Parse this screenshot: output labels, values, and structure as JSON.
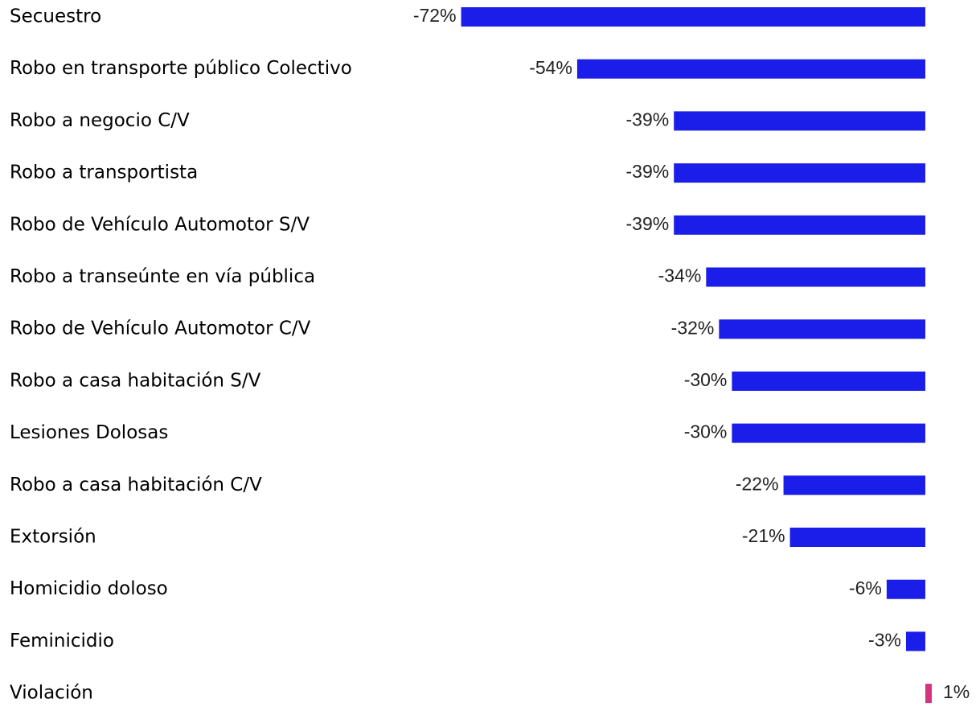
{
  "chart_data": {
    "type": "bar",
    "orientation": "horizontal",
    "categories": [
      "Secuestro",
      "Robo en transporte público Colectivo",
      "Robo a negocio C/V",
      "Robo a transportista",
      "Robo de Vehículo Automotor S/V",
      "Robo a transeúnte en vía pública",
      "Robo de Vehículo Automotor C/V",
      "Robo a casa habitación S/V",
      "Lesiones Dolosas",
      "Robo a casa habitación C/V",
      "Extorsión",
      "Homicidio doloso",
      "Feminicidio",
      "Violación"
    ],
    "values": [
      -72,
      -54,
      -39,
      -39,
      -39,
      -34,
      -32,
      -30,
      -30,
      -22,
      -21,
      -6,
      -3,
      1
    ],
    "value_labels": [
      "-72%",
      "-54%",
      "-39%",
      "-39%",
      "-39%",
      "-34%",
      "-32%",
      "-30%",
      "-30%",
      "-22%",
      "-21%",
      "-6%",
      "-3%",
      "1%"
    ],
    "colors": [
      "#1a1ee8",
      "#1a1ee8",
      "#1a1ee8",
      "#1a1ee8",
      "#1a1ee8",
      "#1a1ee8",
      "#1a1ee8",
      "#1a1ee8",
      "#1a1ee8",
      "#1a1ee8",
      "#1a1ee8",
      "#1a1ee8",
      "#1a1ee8",
      "#d6337f"
    ]
  }
}
